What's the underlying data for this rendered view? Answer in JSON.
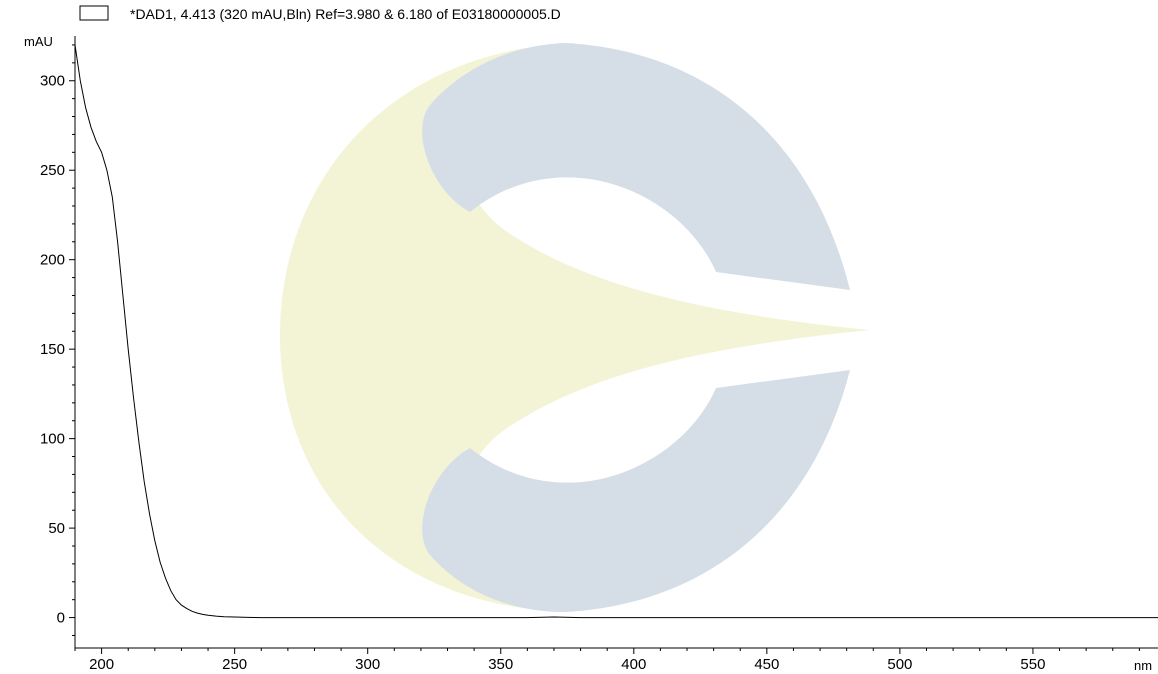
{
  "chart_data": {
    "type": "line",
    "legend": {
      "position": "top-left",
      "text": "*DAD1, 4.413 (320 mAU,Bln) Ref=3.980 & 6.180 of E03180000005.D"
    },
    "ylabel": "mAU",
    "xlabel": "nm",
    "xlim": [
      190,
      597
    ],
    "ylim": [
      -17,
      325
    ],
    "x_ticks": [
      200,
      250,
      300,
      350,
      400,
      450,
      500,
      550
    ],
    "y_ticks": [
      0,
      50,
      100,
      150,
      200,
      250,
      300
    ],
    "grid": false,
    "series": [
      {
        "color": "#000000",
        "x": [
          190,
          192,
          194,
          196,
          198,
          200,
          202,
          204,
          206,
          208,
          210,
          212,
          214,
          216,
          218,
          220,
          222,
          224,
          226,
          228,
          230,
          232,
          234,
          236,
          238,
          240,
          243,
          246,
          250,
          255,
          260,
          280,
          300,
          320,
          340,
          360,
          370,
          380,
          400,
          450,
          500,
          550,
          597
        ],
        "y": [
          320,
          300,
          285,
          274,
          266,
          260,
          250,
          235,
          210,
          180,
          150,
          123,
          98,
          76,
          58,
          43,
          31,
          22,
          15,
          10,
          7,
          5,
          3.5,
          2.5,
          1.8,
          1.3,
          0.8,
          0.5,
          0.3,
          0.1,
          0,
          0,
          0,
          0,
          0,
          0,
          0.3,
          0,
          0,
          0,
          0,
          0,
          0
        ]
      }
    ]
  },
  "watermark": {
    "icon": "company-logo",
    "colors": {
      "gray": "#d5dee6",
      "yellow": "#f3f4d6"
    }
  }
}
